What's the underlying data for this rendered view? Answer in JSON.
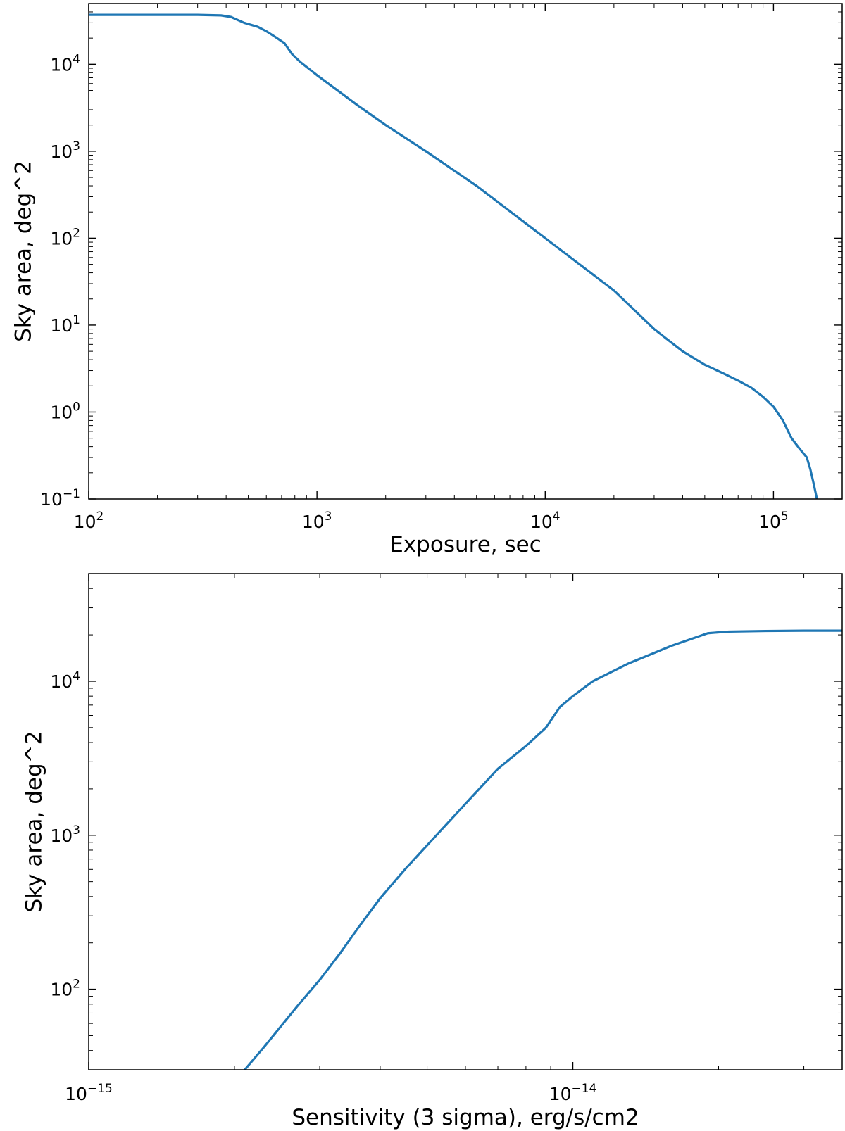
{
  "chart_data": [
    {
      "type": "line",
      "title": "",
      "xlabel": "Exposure, sec",
      "ylabel": "Sky area, deg^2",
      "xscale": "log",
      "yscale": "log",
      "xlim": [
        100,
        200000
      ],
      "ylim": [
        0.1,
        50000
      ],
      "grid": false,
      "color": "#1f77b4",
      "xticks": [
        {
          "base": "10",
          "exp": "2",
          "value": 100
        },
        {
          "base": "10",
          "exp": "3",
          "value": 1000
        },
        {
          "base": "10",
          "exp": "4",
          "value": 10000
        },
        {
          "base": "10",
          "exp": "5",
          "value": 100000
        }
      ],
      "yticks": [
        {
          "base": "10",
          "exp": "−1",
          "value": 0.1
        },
        {
          "base": "10",
          "exp": "0",
          "value": 1
        },
        {
          "base": "10",
          "exp": "1",
          "value": 10
        },
        {
          "base": "10",
          "exp": "2",
          "value": 100
        },
        {
          "base": "10",
          "exp": "3",
          "value": 1000
        },
        {
          "base": "10",
          "exp": "4",
          "value": 10000
        }
      ],
      "x": [
        100,
        200,
        300,
        380,
        420,
        480,
        550,
        600,
        650,
        720,
        780,
        850,
        1000,
        1500,
        2000,
        3000,
        5000,
        10000,
        20000,
        30000,
        40000,
        50000,
        60000,
        70000,
        80000,
        90000,
        100000,
        110000,
        120000,
        130000,
        140000,
        145000,
        150000,
        155000
      ],
      "y": [
        37000,
        37000,
        37000,
        36500,
        35000,
        30000,
        27000,
        24000,
        21000,
        17500,
        13000,
        10500,
        7500,
        3400,
        2000,
        1000,
        400,
        100,
        25,
        9,
        5,
        3.5,
        2.8,
        2.3,
        1.9,
        1.5,
        1.15,
        0.8,
        0.5,
        0.38,
        0.3,
        0.22,
        0.15,
        0.1
      ]
    },
    {
      "type": "line",
      "title": "",
      "xlabel": "Sensitivity (3 sigma), erg/s/cm2",
      "ylabel": "Sky area, deg^2",
      "xscale": "log",
      "yscale": "log",
      "xlim": [
        1e-15,
        3.6e-14
      ],
      "ylim": [
        30,
        50000
      ],
      "grid": false,
      "color": "#1f77b4",
      "xticks": [
        {
          "base": "10",
          "exp": "−15",
          "value": 1e-15
        },
        {
          "base": "10",
          "exp": "−14",
          "value": 1e-14
        }
      ],
      "yticks": [
        {
          "base": "10",
          "exp": "2",
          "value": 100
        },
        {
          "base": "10",
          "exp": "3",
          "value": 1000
        },
        {
          "base": "10",
          "exp": "4",
          "value": 10000
        }
      ],
      "x": [
        2.1e-15,
        2.3e-15,
        2.5e-15,
        2.7e-15,
        3e-15,
        3.3e-15,
        3.6e-15,
        4e-15,
        4.5e-15,
        5e-15,
        6e-15,
        7e-15,
        8e-15,
        8.8e-15,
        9.4e-15,
        1e-14,
        1.1e-14,
        1.3e-14,
        1.6e-14,
        1.9e-14,
        2.1e-14,
        2.5e-14,
        3e-14,
        3.6e-14
      ],
      "y": [
        30,
        42,
        58,
        78,
        115,
        170,
        250,
        390,
        600,
        860,
        1600,
        2700,
        3800,
        5000,
        6800,
        8000,
        10000,
        13000,
        17000,
        20500,
        21000,
        21200,
        21300,
        21300
      ]
    }
  ]
}
